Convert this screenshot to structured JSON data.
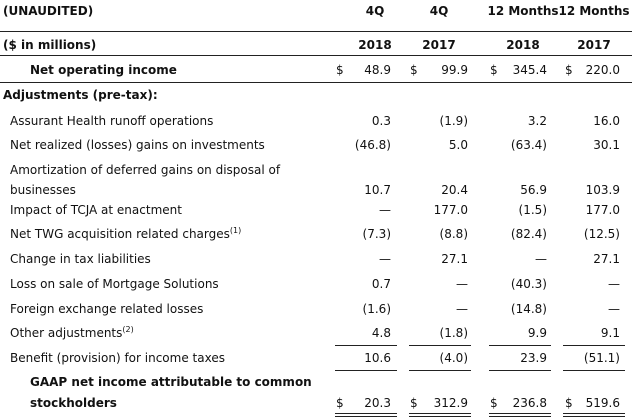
{
  "header": {
    "row1_label": "(UNAUDITED)",
    "row2_label": "($ in millions)",
    "columns": [
      {
        "line1": "4Q",
        "line2": "2018"
      },
      {
        "line1": "4Q",
        "line2": "2017"
      },
      {
        "line1": "12 Months",
        "line2": "2018"
      },
      {
        "line1": "12 Months",
        "line2": "2017"
      }
    ]
  },
  "net_operating_income": {
    "label": "Net operating income",
    "currency": "$",
    "values": [
      "48.9",
      "99.9",
      "345.4",
      "220.0"
    ]
  },
  "adjustments_label": "Adjustments (pre-tax):",
  "adjustments": [
    {
      "label": "Assurant Health runoff operations",
      "values": [
        "0.3",
        "(1.9)",
        "3.2",
        "16.0"
      ]
    },
    {
      "label": "Net realized (losses) gains on investments",
      "values": [
        "(46.8)",
        "5.0",
        "(63.4)",
        "30.1"
      ]
    },
    {
      "label": "Amortization of deferred gains on disposal of",
      "values": [
        "",
        "",
        "",
        ""
      ]
    },
    {
      "label": "businesses",
      "values": [
        "10.7",
        "20.4",
        "56.9",
        "103.9"
      ]
    },
    {
      "label": "Impact of TCJA at enactment",
      "values": [
        "—",
        "177.0",
        "(1.5)",
        "177.0"
      ]
    },
    {
      "label": "Net TWG acquisition related charges",
      "sup": "(1)",
      "values": [
        "(7.3)",
        "(8.8)",
        "(82.4)",
        "(12.5)"
      ]
    },
    {
      "label": "Change in tax liabilities",
      "values": [
        "—",
        "27.1",
        "—",
        "27.1"
      ]
    },
    {
      "label": "Loss on sale of Mortgage Solutions",
      "values": [
        "0.7",
        "—",
        "(40.3)",
        "—"
      ]
    },
    {
      "label": "Foreign exchange related losses",
      "values": [
        "(1.6)",
        "—",
        "(14.8)",
        "—"
      ]
    },
    {
      "label": "Other adjustments",
      "sup": "(2)",
      "values": [
        "4.8",
        "(1.8)",
        "9.9",
        "9.1"
      ]
    },
    {
      "label": "Benefit (provision) for income taxes",
      "values": [
        "10.6",
        "(4.0)",
        "23.9",
        "(51.1)"
      ]
    }
  ],
  "gaap": {
    "label_line1": "GAAP net income attributable to common",
    "label_line2": "stockholders",
    "currency": "$",
    "values": [
      "20.3",
      "312.9",
      "236.8",
      "519.6"
    ]
  }
}
